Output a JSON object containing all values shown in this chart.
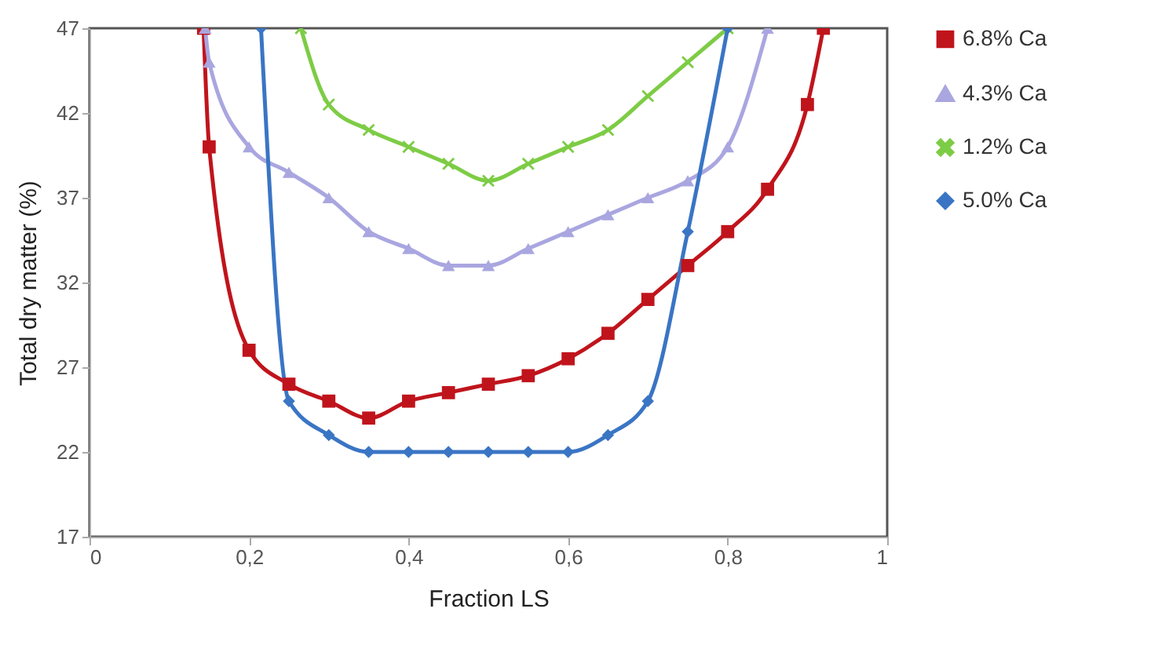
{
  "chart_data": {
    "type": "line",
    "xlabel": "Fraction LS",
    "ylabel": "Total dry matter (%)",
    "xlim": [
      0,
      1
    ],
    "xticks": [
      0,
      {
        "value": 0.2,
        "label": "0,2"
      },
      {
        "value": 0.4,
        "label": "0,4"
      },
      {
        "value": 0.6,
        "label": "0,6"
      },
      {
        "value": 0.8,
        "label": "0,8"
      },
      1
    ],
    "ylim": [
      17,
      47
    ],
    "yticks": [
      17,
      22,
      27,
      32,
      37,
      42,
      47
    ],
    "grid": false,
    "legend": "right",
    "series": [
      {
        "name": "6.8% Ca",
        "color": "#c0141c",
        "marker": "square",
        "x": [
          0.143,
          0.15,
          0.2,
          0.25,
          0.3,
          0.35,
          0.4,
          0.45,
          0.5,
          0.55,
          0.6,
          0.65,
          0.7,
          0.75,
          0.8,
          0.85,
          0.9,
          0.92
        ],
        "values": [
          47,
          40,
          28,
          26,
          25,
          24,
          25,
          25.5,
          26,
          26.5,
          27.5,
          29,
          31,
          33,
          35,
          37.5,
          42.5,
          47
        ]
      },
      {
        "name": "4.3% Ca",
        "color": "#a9a6e0",
        "marker": "triangle",
        "x": [
          0.145,
          0.15,
          0.2,
          0.25,
          0.3,
          0.35,
          0.4,
          0.45,
          0.5,
          0.55,
          0.6,
          0.65,
          0.7,
          0.75,
          0.8,
          0.85
        ],
        "values": [
          47,
          45,
          40,
          38.5,
          37,
          35,
          34,
          33,
          33,
          34,
          35,
          36,
          37,
          38,
          40,
          47
        ]
      },
      {
        "name": "1.2% Ca",
        "color": "#7dcc45",
        "marker": "cross",
        "x": [
          0.265,
          0.3,
          0.35,
          0.4,
          0.45,
          0.5,
          0.55,
          0.6,
          0.65,
          0.7,
          0.75,
          0.8
        ],
        "values": [
          47,
          42.5,
          41,
          40,
          39,
          38,
          39,
          40,
          41,
          43,
          45,
          47
        ]
      },
      {
        "name": "5.0% Ca",
        "color": "#3a75c4",
        "marker": "diamond",
        "x": [
          0.215,
          0.25,
          0.3,
          0.35,
          0.4,
          0.45,
          0.5,
          0.55,
          0.6,
          0.65,
          0.7,
          0.75,
          0.8
        ],
        "values": [
          47,
          25,
          23,
          22,
          22,
          22,
          22,
          22,
          22,
          23,
          25,
          35,
          47
        ]
      }
    ]
  }
}
